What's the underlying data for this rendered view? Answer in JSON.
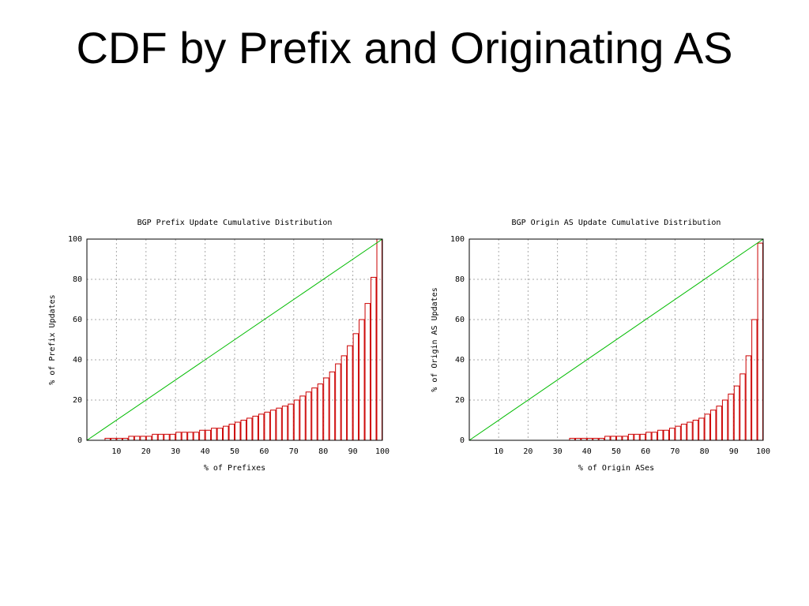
{
  "title": "CDF by Prefix and Originating AS",
  "chart_data": [
    {
      "type": "histogram",
      "title": "BGP Prefix Update Cumulative Distribution",
      "x_label": "% of Prefixes",
      "y_label": "% of Prefix Updates",
      "bins": [
        0,
        2,
        4,
        6,
        8,
        10,
        12,
        14,
        16,
        18,
        20,
        22,
        24,
        26,
        28,
        30,
        32,
        34,
        36,
        38,
        40,
        42,
        44,
        46,
        48,
        50,
        52,
        54,
        56,
        58,
        60,
        62,
        64,
        66,
        68,
        70,
        72,
        74,
        76,
        78,
        80,
        82,
        84,
        86,
        88,
        90,
        92,
        94,
        96,
        98,
        100
      ],
      "values": [
        0,
        0,
        0,
        1,
        1,
        1,
        1,
        2,
        2,
        2,
        2,
        3,
        3,
        3,
        3,
        4,
        4,
        4,
        4,
        5,
        5,
        6,
        6,
        7,
        8,
        9,
        10,
        11,
        12,
        13,
        14,
        15,
        16,
        17,
        18,
        20,
        22,
        24,
        26,
        28,
        31,
        34,
        38,
        42,
        47,
        53,
        60,
        68,
        81,
        100
      ],
      "color": "#cc0000",
      "line": {
        "x": [
          0,
          100
        ],
        "values": [
          0,
          100
        ],
        "color": "#00bb00"
      },
      "xlim": [
        0,
        100
      ],
      "ylim": [
        0,
        100
      ],
      "xticks": [
        10,
        20,
        30,
        40,
        50,
        60,
        70,
        80,
        90,
        100
      ],
      "yticks": [
        0,
        20,
        40,
        60,
        80,
        100
      ],
      "grid": true
    },
    {
      "type": "histogram",
      "title": "BGP Origin AS Update Cumulative Distribution",
      "x_label": "% of Origin ASes",
      "y_label": "% of Origin AS Updates",
      "bins": [
        0,
        2,
        4,
        6,
        8,
        10,
        12,
        14,
        16,
        18,
        20,
        22,
        24,
        26,
        28,
        30,
        32,
        34,
        36,
        38,
        40,
        42,
        44,
        46,
        48,
        50,
        52,
        54,
        56,
        58,
        60,
        62,
        64,
        66,
        68,
        70,
        72,
        74,
        76,
        78,
        80,
        82,
        84,
        86,
        88,
        90,
        92,
        94,
        96,
        98,
        100
      ],
      "values": [
        0,
        0,
        0,
        0,
        0,
        0,
        0,
        0,
        0,
        0,
        0,
        0,
        0,
        0,
        0,
        0,
        0,
        1,
        1,
        1,
        1,
        1,
        1,
        2,
        2,
        2,
        2,
        3,
        3,
        3,
        4,
        4,
        5,
        5,
        6,
        7,
        8,
        9,
        10,
        11,
        13,
        15,
        17,
        20,
        23,
        27,
        33,
        42,
        60,
        98
      ],
      "color": "#cc0000",
      "line": {
        "x": [
          0,
          100
        ],
        "values": [
          0,
          100
        ],
        "color": "#00bb00"
      },
      "xlim": [
        0,
        100
      ],
      "ylim": [
        0,
        100
      ],
      "xticks": [
        10,
        20,
        30,
        40,
        50,
        60,
        70,
        80,
        90,
        100
      ],
      "yticks": [
        0,
        20,
        40,
        60,
        80,
        100
      ],
      "grid": true
    }
  ]
}
